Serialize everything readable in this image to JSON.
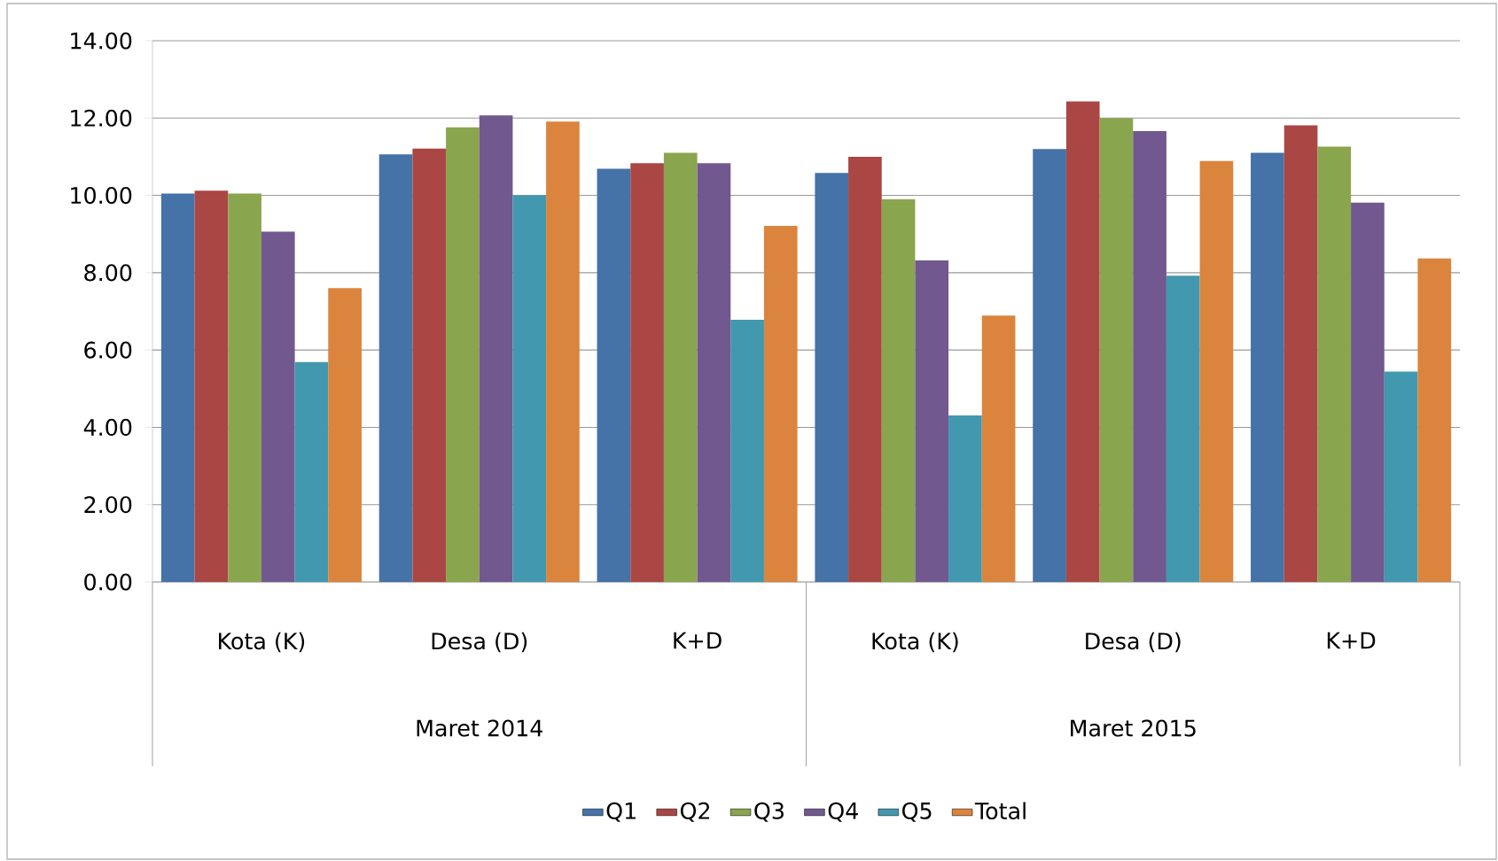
{
  "chart_data": {
    "type": "bar",
    "categories": [
      "Kota (K)",
      "Desa (D)",
      "K+D",
      "Kota (K)",
      "Desa (D)",
      "K+D"
    ],
    "annotations": [
      "Maret 2014",
      "Maret 2015"
    ],
    "series": [
      {
        "name": "Q1",
        "color": "#4572a7",
        "values": [
          10.05,
          11.06,
          10.69,
          10.58,
          11.2,
          11.1
        ]
      },
      {
        "name": "Q2",
        "color": "#aa4643",
        "values": [
          10.12,
          11.21,
          10.83,
          11.0,
          12.43,
          11.81
        ]
      },
      {
        "name": "Q3",
        "color": "#89a54e",
        "values": [
          10.05,
          11.76,
          11.1,
          9.9,
          12.0,
          11.26
        ]
      },
      {
        "name": "Q4",
        "color": "#71588f",
        "values": [
          9.06,
          12.07,
          10.83,
          8.32,
          11.66,
          9.81
        ]
      },
      {
        "name": "Q5",
        "color": "#4198af",
        "values": [
          5.69,
          10.0,
          6.78,
          4.31,
          7.92,
          5.44
        ]
      },
      {
        "name": "Total",
        "color": "#db843d",
        "values": [
          7.6,
          11.91,
          9.21,
          6.89,
          10.89,
          8.37
        ]
      }
    ],
    "ylim": [
      0,
      14
    ],
    "yticks": [
      {
        "value": 0,
        "label": "0.00"
      },
      {
        "value": 2,
        "label": "2.00"
      },
      {
        "value": 4,
        "label": "4.00"
      },
      {
        "value": 6,
        "label": "6.00"
      },
      {
        "value": 8,
        "label": "8.00"
      },
      {
        "value": 10,
        "label": "10.00"
      },
      {
        "value": 12,
        "label": "12.00"
      },
      {
        "value": 14,
        "label": "14.00"
      }
    ],
    "grid": "y",
    "legend": "bottom"
  }
}
